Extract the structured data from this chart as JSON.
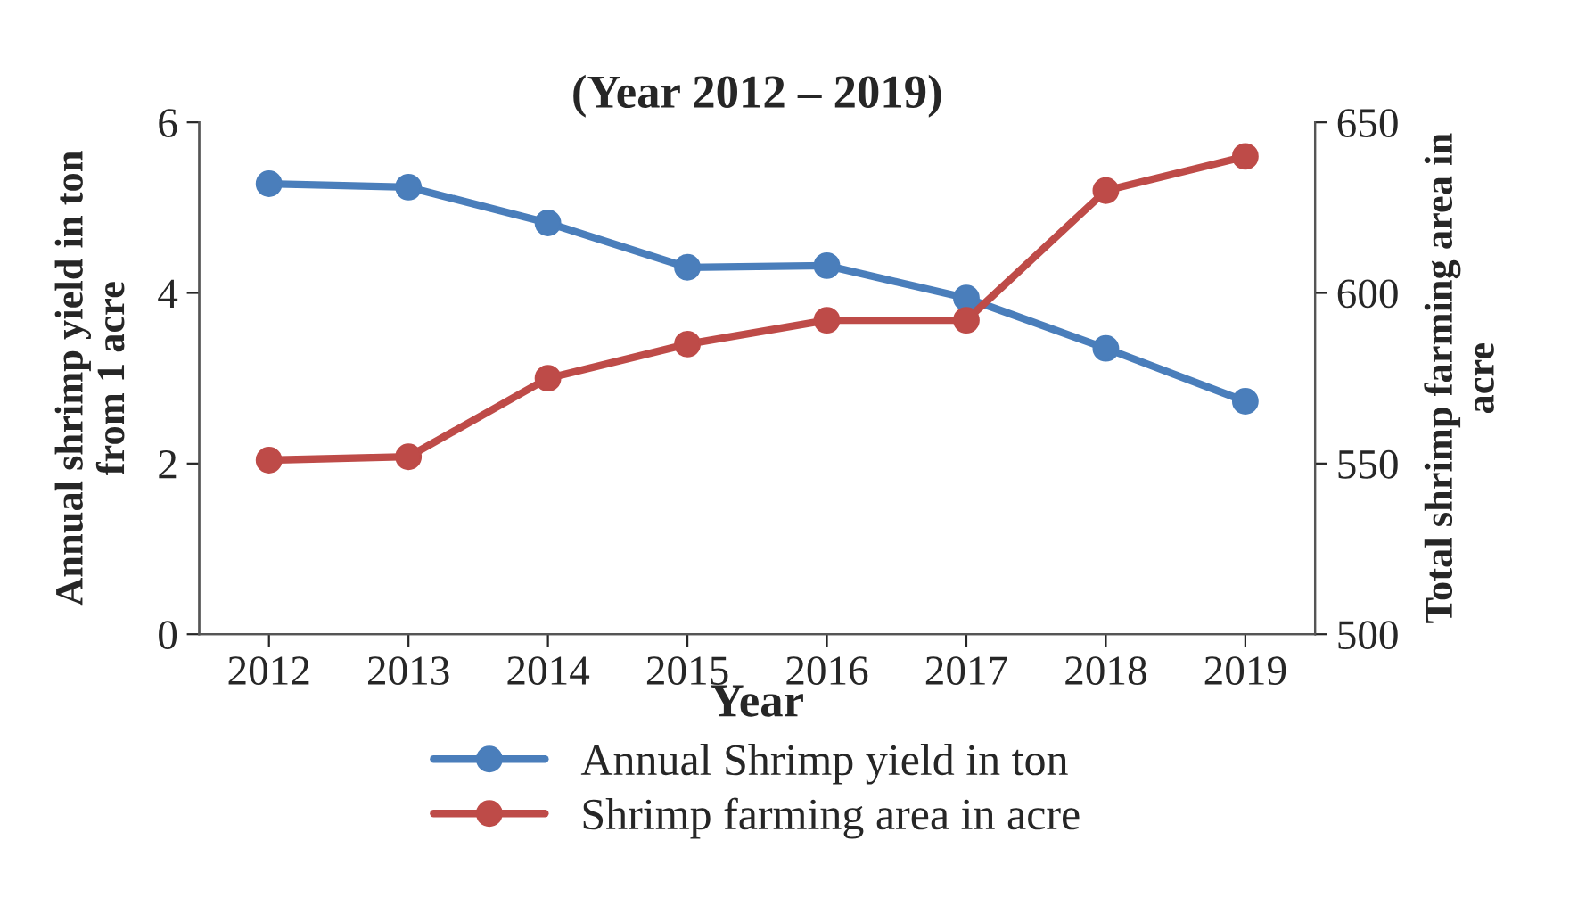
{
  "chart_data": {
    "type": "line",
    "title": "(Year 2012 – 2019)",
    "xlabel": "Year",
    "ylabel": "Annual shrimp yield in ton\nfrom 1 acre",
    "y2label": "Total shrimp farming area in\nacre",
    "categories": [
      "2012",
      "2013",
      "2014",
      "2015",
      "2016",
      "2017",
      "2018",
      "2019"
    ],
    "series": [
      {
        "name": "Annual Shrimp yield in ton",
        "color": "#4a7ebb",
        "values": [
          5.28,
          5.24,
          4.82,
          4.3,
          4.32,
          3.94,
          3.35,
          2.73
        ]
      },
      {
        "name": "Shrimp farming area in acre",
        "color": "#be4b48",
        "axis": "y2",
        "values": [
          551,
          552,
          575,
          585,
          592,
          592,
          630,
          640
        ]
      }
    ],
    "ylim": [
      0,
      6
    ],
    "yticks": [
      0,
      2,
      4,
      6
    ],
    "y2lim": [
      500,
      650
    ],
    "y2ticks": [
      500,
      550,
      600,
      650
    ],
    "marker": "circle",
    "line_style": "solid",
    "grid": false,
    "legend": "bottom"
  }
}
